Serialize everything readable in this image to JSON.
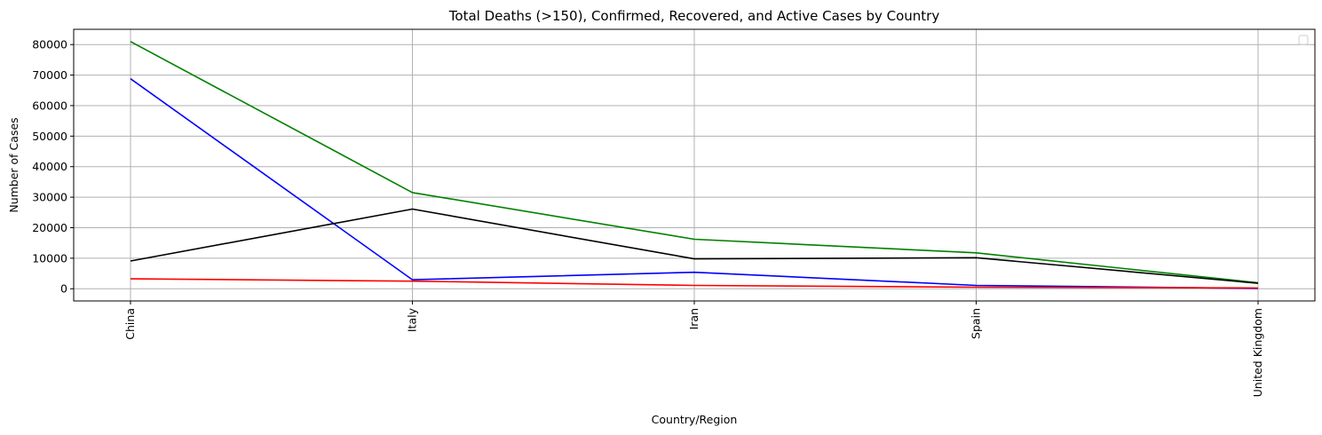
{
  "chart_data": {
    "type": "line",
    "title": "Total Deaths (>150), Confirmed, Recovered, and Active Cases by Country",
    "xlabel": "Country/Region",
    "ylabel": "Number of Cases",
    "categories": [
      "China",
      "Italy",
      "Iran",
      "Spain",
      "United Kingdom"
    ],
    "ylim": [
      -4000,
      85000
    ],
    "yticks": [
      0,
      10000,
      20000,
      30000,
      40000,
      50000,
      60000,
      70000,
      80000
    ],
    "ytick_labels": [
      "0",
      "10000",
      "20000",
      "30000",
      "40000",
      "50000",
      "60000",
      "70000",
      "80000"
    ],
    "grid": true,
    "legend": "upper right (empty)",
    "series": [
      {
        "color": "#008000",
        "values": [
          81000,
          31500,
          16200,
          11750,
          1950
        ]
      },
      {
        "color": "#0000ff",
        "values": [
          68800,
          2950,
          5400,
          1100,
          100
        ]
      },
      {
        "color": "#000000",
        "values": [
          9100,
          26100,
          9800,
          10150,
          1800
        ]
      },
      {
        "color": "#ff0000",
        "values": [
          3250,
          2500,
          1100,
          500,
          250
        ]
      }
    ]
  }
}
